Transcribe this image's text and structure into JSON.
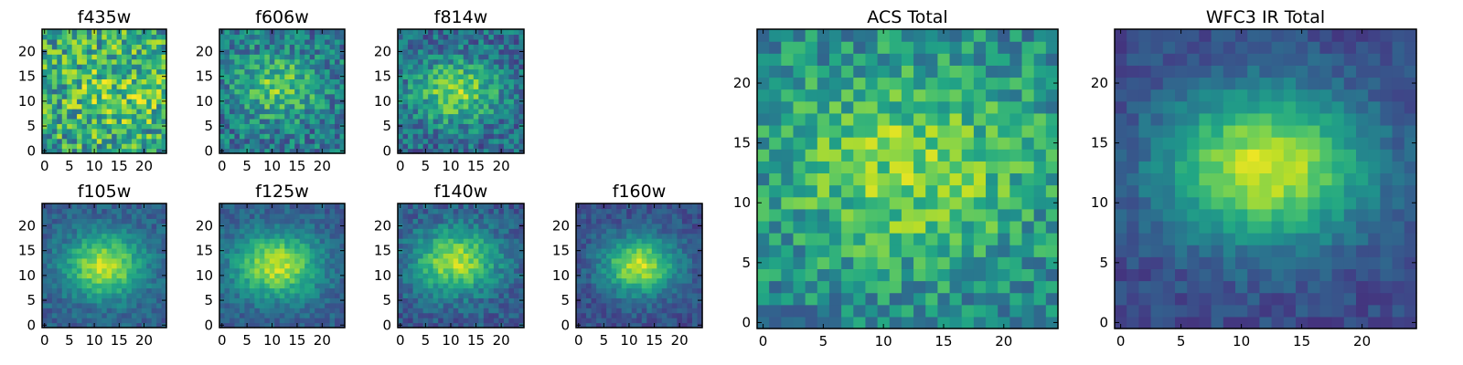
{
  "chart_data": {
    "type": "heatmap",
    "colormap": "viridis",
    "grid_size": 25,
    "panels": [
      {
        "id": "f435w",
        "title": "f435w",
        "peak": [
          15,
          12
        ],
        "sigma": [
          9,
          7
        ],
        "amp": 0.18,
        "base": 0.56,
        "noise": 0.3,
        "seed": 11,
        "vmin": 0,
        "vmax": 1,
        "xticks": [
          0,
          5,
          10,
          15,
          20
        ],
        "yticks": [
          0,
          5,
          10,
          15,
          20
        ]
      },
      {
        "id": "f606w",
        "title": "f606w",
        "peak": [
          11,
          13
        ],
        "sigma": [
          6,
          4.5
        ],
        "amp": 0.35,
        "base": 0.4,
        "noise": 0.22,
        "seed": 23,
        "vmin": 0,
        "vmax": 1,
        "xticks": [
          0,
          5,
          10,
          15,
          20
        ],
        "yticks": [
          0,
          5,
          10,
          15,
          20
        ]
      },
      {
        "id": "f814w",
        "title": "f814w",
        "peak": [
          11,
          12
        ],
        "sigma": [
          6,
          4.5
        ],
        "amp": 0.45,
        "base": 0.35,
        "noise": 0.2,
        "seed": 37,
        "vmin": 0,
        "vmax": 1,
        "xticks": [
          0,
          5,
          10,
          15,
          20
        ],
        "yticks": [
          0,
          5,
          10,
          15,
          20
        ]
      },
      {
        "id": "f105w",
        "title": "f105w",
        "peak": [
          12,
          12
        ],
        "sigma": [
          5.5,
          4.5
        ],
        "amp": 0.6,
        "base": 0.3,
        "noise": 0.1,
        "seed": 41,
        "vmin": 0,
        "vmax": 1,
        "xticks": [
          0,
          5,
          10,
          15,
          20
        ],
        "yticks": [
          0,
          5,
          10,
          15,
          20
        ]
      },
      {
        "id": "f125w",
        "title": "f125w",
        "peak": [
          11,
          12
        ],
        "sigma": [
          6,
          4.5
        ],
        "amp": 0.6,
        "base": 0.3,
        "noise": 0.1,
        "seed": 53,
        "vmin": 0,
        "vmax": 1,
        "xticks": [
          0,
          5,
          10,
          15,
          20
        ],
        "yticks": [
          0,
          5,
          10,
          15,
          20
        ]
      },
      {
        "id": "f140w",
        "title": "f140w",
        "peak": [
          11,
          13
        ],
        "sigma": [
          6,
          4.5
        ],
        "amp": 0.6,
        "base": 0.28,
        "noise": 0.12,
        "seed": 67,
        "vmin": 0,
        "vmax": 1,
        "xticks": [
          0,
          5,
          10,
          15,
          20
        ],
        "yticks": [
          0,
          5,
          10,
          15,
          20
        ]
      },
      {
        "id": "f160w",
        "title": "f160w",
        "peak": [
          12,
          12
        ],
        "sigma": [
          5,
          4
        ],
        "amp": 0.65,
        "base": 0.25,
        "noise": 0.1,
        "seed": 79,
        "vmin": 0,
        "vmax": 1,
        "xticks": [
          0,
          5,
          10,
          15,
          20
        ],
        "yticks": [
          0,
          5,
          10,
          15,
          20
        ]
      },
      {
        "id": "acs_total",
        "title": "ACS Total",
        "peak": [
          12,
          13
        ],
        "sigma": [
          8,
          6
        ],
        "amp": 0.35,
        "base": 0.45,
        "noise": 0.2,
        "seed": 97,
        "vmin": 0,
        "vmax": 1,
        "xticks": [
          0,
          5,
          10,
          15,
          20
        ],
        "yticks": [
          0,
          5,
          10,
          15,
          20
        ]
      },
      {
        "id": "wfc3_ir_total",
        "title": "WFC3 IR Total",
        "peak": [
          12,
          13
        ],
        "sigma": [
          6,
          4.5
        ],
        "amp": 0.7,
        "base": 0.22,
        "noise": 0.08,
        "seed": 113,
        "vmin": 0,
        "vmax": 1,
        "xticks": [
          0,
          5,
          10,
          15,
          20
        ],
        "yticks": [
          0,
          5,
          10,
          15,
          20
        ]
      }
    ]
  }
}
